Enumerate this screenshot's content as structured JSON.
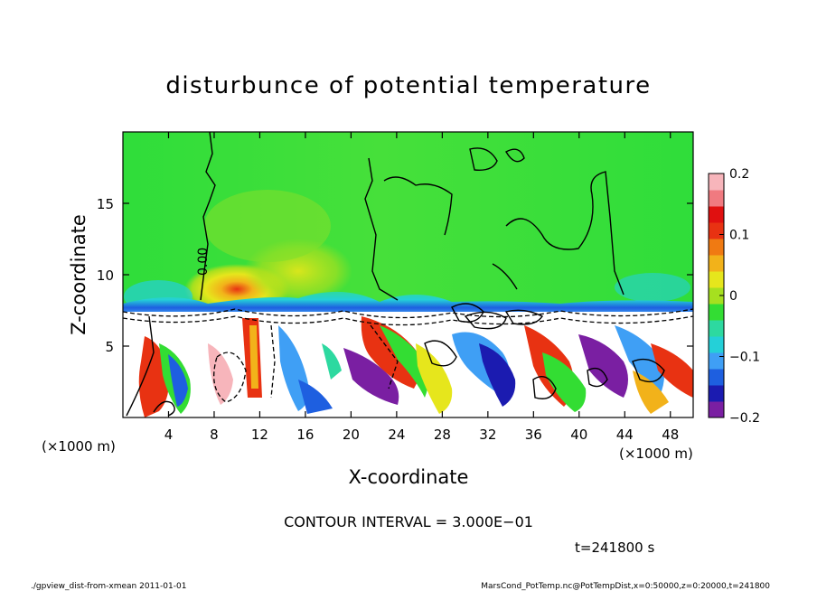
{
  "chart_data": {
    "type": "heatmap",
    "title": "disturbunce of potential temperature",
    "xlabel": "X-coordinate",
    "ylabel": "Z-coordinate",
    "x_unit": "(×1000 m)",
    "y_unit": "(×1000 m)",
    "xlim": [
      0,
      50
    ],
    "ylim": [
      0,
      20
    ],
    "x_ticks": [
      "4",
      "8",
      "12",
      "16",
      "20",
      "24",
      "28",
      "32",
      "36",
      "40",
      "44",
      "48"
    ],
    "y_ticks": [
      "5",
      "10",
      "15"
    ],
    "colorbar": {
      "range": [
        -0.2,
        0.2
      ],
      "ticks": [
        "0.2",
        "0.1",
        "0",
        "−0.1",
        "−0.2"
      ],
      "colors": [
        "#7a1fa2",
        "#1b1bb0",
        "#1e5fe0",
        "#3f9ff5",
        "#24d0d8",
        "#2dd9a0",
        "#33dd33",
        "#a6e01f",
        "#e6e61c",
        "#f2b21a",
        "#f07a12",
        "#e83212",
        "#e01010",
        "#f07a80",
        "#f7b5bb"
      ]
    },
    "contour_label": "0.00",
    "contour_interval_text": "CONTOUR INTERVAL = 3.000E−01",
    "time_text": "t=241800 s"
  },
  "footer": {
    "left": "./gpview_dist-from-xmean  2011-01-01",
    "right": "MarsCond_PotTemp.nc@PotTempDist,x=0:50000,z=0:20000,t=241800"
  }
}
